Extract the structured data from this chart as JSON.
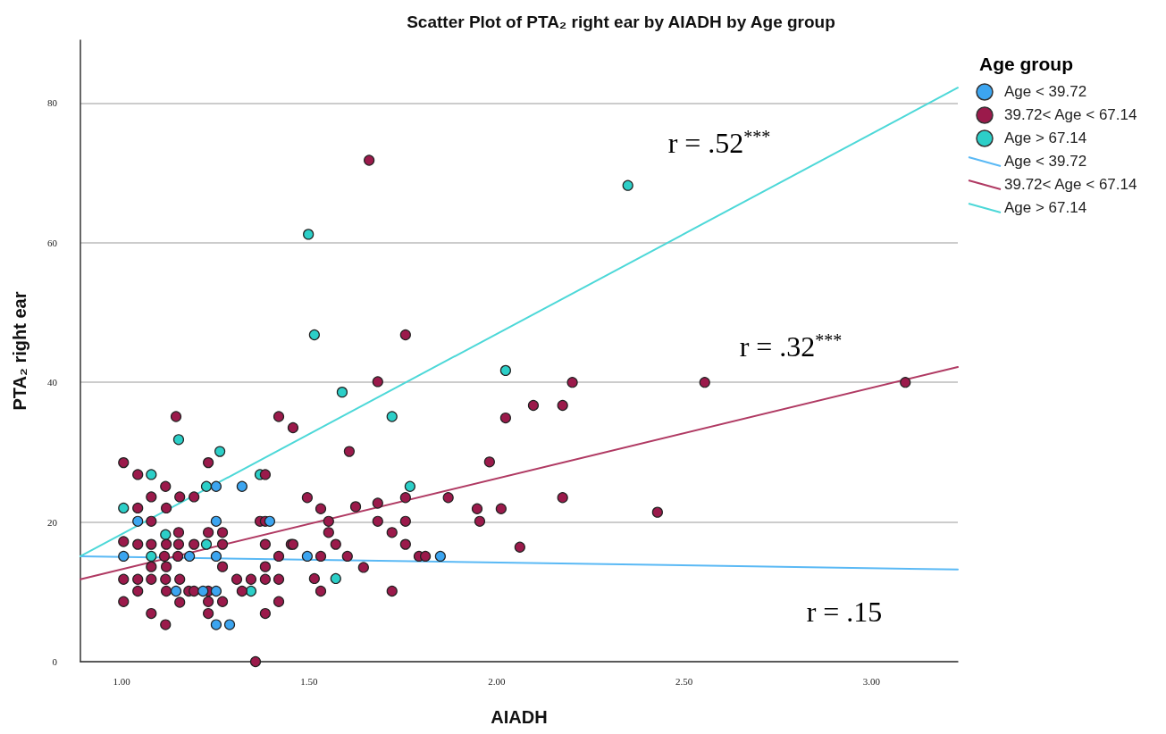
{
  "chart_data": {
    "type": "scatter",
    "title": "Scatter Plot of PTA₂ right ear by AIADH by Age group",
    "xlabel": "AIADH",
    "ylabel": "PTA₂ right ear",
    "legend_title": "Age group",
    "legend": "top right",
    "grid": "y",
    "marker": "circle",
    "xlim": [
      0.89,
      3.23
    ],
    "xticks": [
      {
        "value": 1,
        "label": "1.00"
      },
      {
        "value": 1.5,
        "label": "1.50"
      },
      {
        "value": 2,
        "label": "2.00"
      },
      {
        "value": 2.5,
        "label": "2.50"
      },
      {
        "value": 3,
        "label": "3.00"
      }
    ],
    "ylim": [
      0,
      89
    ],
    "yticks": [
      0,
      20,
      40,
      60,
      80
    ],
    "annotations": [
      "r = .52$^{***}$",
      "r = .32$^{***}$",
      "r = .15"
    ],
    "series": [
      {
        "name": "Age < 39.72",
        "color": "#3ca5f0",
        "x": [
          1.043,
          1.252,
          1.252,
          1.321,
          1.395,
          1.005,
          1.181,
          1.252,
          1.145,
          1.217,
          1.252,
          1.252,
          1.288,
          1.495,
          1.85
        ],
        "values": [
          20.1,
          25.1,
          20.1,
          25.1,
          20.1,
          15.1,
          15.1,
          15.1,
          10.1,
          10.1,
          10.1,
          5.3,
          5.3,
          15.1,
          15.1
        ]
      },
      {
        "name": "39.72< Age < 67.14",
        "color": "#9b1a4b",
        "x": [
          1.145,
          1.005,
          1.231,
          1.043,
          1.383,
          1.117,
          1.079,
          1.155,
          1.193,
          1.043,
          1.119,
          1.079,
          1.369,
          1.383,
          1.152,
          1.231,
          1.269,
          1.005,
          1.043,
          1.079,
          1.119,
          1.152,
          1.193,
          1.269,
          1.383,
          1.452,
          1.114,
          1.15,
          1.419,
          1.079,
          1.119,
          1.269,
          1.383,
          1.005,
          1.043,
          1.079,
          1.117,
          1.155,
          1.307,
          1.345,
          1.383,
          1.419,
          1.043,
          1.119,
          1.179,
          1.193,
          1.231,
          1.321,
          1.005,
          1.155,
          1.231,
          1.269,
          1.419,
          1.079,
          1.231,
          1.383,
          1.117,
          1.357,
          1.757,
          1.683,
          1.419,
          1.457,
          1.607,
          1.981,
          1.495,
          1.757,
          1.871,
          1.531,
          1.624,
          1.683,
          1.948,
          2.012,
          1.552,
          1.683,
          1.757,
          1.955,
          1.552,
          1.721,
          1.457,
          1.571,
          1.757,
          1.531,
          1.602,
          1.793,
          1.81,
          1.645,
          1.514,
          1.531,
          1.721,
          2.202,
          2.555,
          3.09,
          2.098,
          2.176,
          2.024,
          2.176,
          2.429,
          2.062,
          1.66
        ],
        "values": [
          35.1,
          28.5,
          28.5,
          26.8,
          26.8,
          25.1,
          23.6,
          23.6,
          23.6,
          22.0,
          22.0,
          20.1,
          20.1,
          20.1,
          18.5,
          18.5,
          18.5,
          17.2,
          16.8,
          16.8,
          16.8,
          16.8,
          16.8,
          16.8,
          16.8,
          16.8,
          15.1,
          15.1,
          15.1,
          13.6,
          13.6,
          13.6,
          13.6,
          11.8,
          11.8,
          11.8,
          11.8,
          11.8,
          11.8,
          11.8,
          11.8,
          11.8,
          10.1,
          10.1,
          10.1,
          10.1,
          10.1,
          10.1,
          8.6,
          8.5,
          8.6,
          8.6,
          8.6,
          6.9,
          6.9,
          6.9,
          5.3,
          0,
          46.8,
          40.1,
          35.1,
          33.5,
          30.1,
          28.6,
          23.5,
          23.5,
          23.5,
          21.9,
          22.2,
          22.7,
          21.9,
          21.9,
          20.1,
          20.1,
          20.1,
          20.1,
          18.5,
          18.5,
          16.8,
          16.8,
          16.8,
          15.1,
          15.1,
          15.1,
          15.1,
          13.5,
          11.9,
          10.1,
          10.1,
          40.0,
          40.0,
          40.0,
          36.7,
          36.7,
          34.9,
          23.5,
          21.4,
          16.4,
          71.8
        ]
      },
      {
        "name": "Age > 67.14",
        "color": "#2ccfc8",
        "x": [
          1.152,
          1.262,
          1.079,
          1.369,
          1.226,
          1.005,
          1.117,
          1.226,
          1.079,
          1.345,
          1.514,
          1.588,
          1.721,
          1.769,
          1.571,
          2.024,
          1.498,
          2.35
        ],
        "values": [
          31.8,
          30.1,
          26.8,
          26.8,
          25.1,
          22.0,
          18.2,
          16.8,
          15.1,
          10.1,
          46.8,
          38.6,
          35.1,
          25.1,
          11.9,
          41.7,
          61.2,
          68.2
        ]
      },
      {
        "name": "Age < 39.72",
        "type": "line",
        "marker": "none",
        "color": "#5ab9f5",
        "x": [
          0.89,
          3.23
        ],
        "values": [
          15.1,
          13.2
        ]
      },
      {
        "name": "39.72< Age < 67.14",
        "type": "line",
        "marker": "none",
        "color": "#b03a63",
        "x": [
          0.89,
          3.23
        ],
        "values": [
          11.8,
          42.2
        ]
      },
      {
        "name": "Age > 67.14",
        "type": "line",
        "marker": "none",
        "color": "#4dd8d8",
        "x": [
          0.89,
          3.23
        ],
        "values": [
          15.1,
          82.2
        ]
      }
    ]
  }
}
